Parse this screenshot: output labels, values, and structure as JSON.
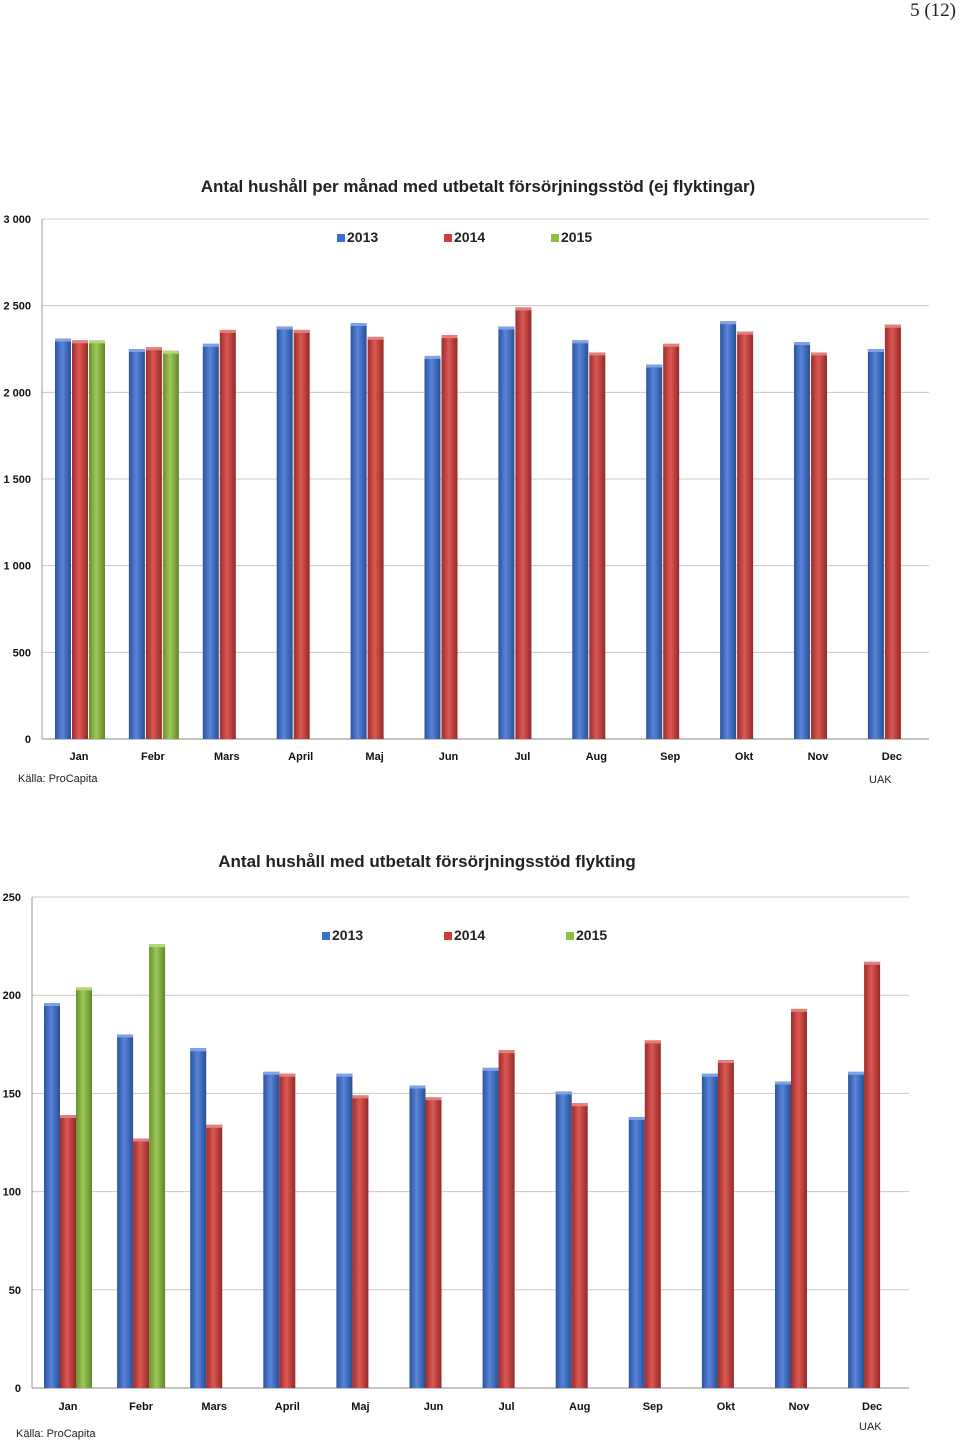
{
  "page_number": "5 (12)",
  "colors": {
    "2013": "#3b6fd4",
    "2014": "#d43a36",
    "2015": "#8cc03c",
    "grid": "#c8c8c8"
  },
  "chart_data": [
    {
      "type": "bar",
      "title": "Antal hushåll per månad med utbetalt försörjningsstöd (ej flyktingar)",
      "categories": [
        "Jan",
        "Febr",
        "Mars",
        "April",
        "Maj",
        "Jun",
        "Jul",
        "Aug",
        "Sep",
        "Okt",
        "Nov",
        "Dec"
      ],
      "series": [
        {
          "name": "2013",
          "values": [
            2310,
            2250,
            2280,
            2380,
            2400,
            2210,
            2380,
            2300,
            2160,
            2410,
            2290,
            2250
          ]
        },
        {
          "name": "2014",
          "values": [
            2300,
            2260,
            2360,
            2360,
            2320,
            2330,
            2490,
            2230,
            2280,
            2350,
            2230,
            2390
          ]
        },
        {
          "name": "2015",
          "values": [
            2300,
            2240,
            null,
            null,
            null,
            null,
            null,
            null,
            null,
            null,
            null,
            null
          ]
        }
      ],
      "ylim": [
        0,
        3000
      ],
      "yticks": [
        0,
        500,
        1000,
        1500,
        2000,
        2500,
        3000
      ],
      "ytick_labels": [
        "0",
        "500",
        "1 000",
        "1 500",
        "2 000",
        "2 500",
        "3 000"
      ],
      "grid": true,
      "legend": "top-center",
      "source": "Källa: ProCapita",
      "org": "UAK"
    },
    {
      "type": "bar",
      "title": "Antal hushåll med utbetalt försörjningsstöd flykting",
      "categories": [
        "Jan",
        "Febr",
        "Mars",
        "April",
        "Maj",
        "Jun",
        "Jul",
        "Aug",
        "Sep",
        "Okt",
        "Nov",
        "Dec"
      ],
      "series": [
        {
          "name": "2013",
          "values": [
            196,
            180,
            173,
            161,
            160,
            154,
            163,
            151,
            138,
            160,
            156,
            161
          ]
        },
        {
          "name": "2014",
          "values": [
            139,
            127,
            134,
            160,
            149,
            148,
            172,
            145,
            177,
            167,
            193,
            217
          ]
        },
        {
          "name": "2015",
          "values": [
            204,
            226,
            null,
            null,
            null,
            null,
            null,
            null,
            null,
            null,
            null,
            null
          ]
        }
      ],
      "ylim": [
        0,
        250
      ],
      "yticks": [
        0,
        50,
        100,
        150,
        200,
        250
      ],
      "ytick_labels": [
        "0",
        "50",
        "100",
        "150",
        "200",
        "250"
      ],
      "grid": true,
      "legend": "top-center",
      "source": "Källa: ProCapita",
      "org": "UAK"
    }
  ]
}
